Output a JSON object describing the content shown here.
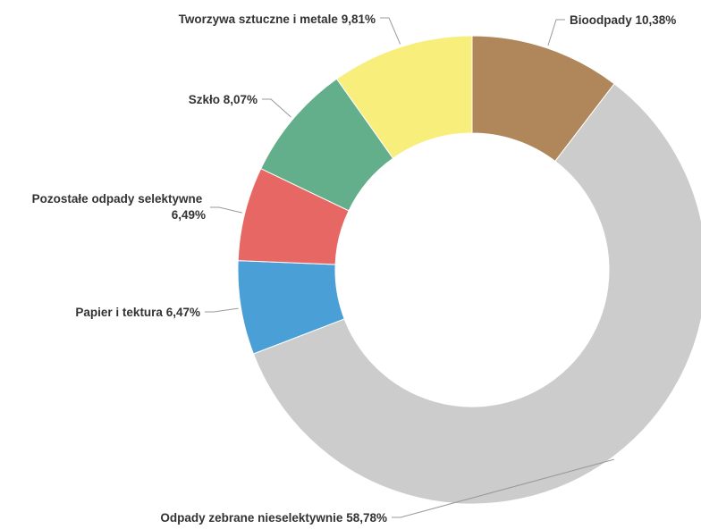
{
  "chart_data": {
    "type": "pie",
    "donut": true,
    "title": "",
    "start_at": "top",
    "direction": "clockwise",
    "slices": [
      {
        "label": "Bioodpady",
        "value": 10.38,
        "value_text": "10,38%",
        "color": "#b0865b"
      },
      {
        "label": "Odpady zebrane nieselektywnie",
        "value": 58.78,
        "value_text": "58,78%",
        "color": "#cccccc"
      },
      {
        "label": "Papier i tektura",
        "value": 6.47,
        "value_text": "6,47%",
        "color": "#4b9fd7"
      },
      {
        "label": "Pozostałe odpady selektywne",
        "value": 6.49,
        "value_text": "6,49%",
        "color": "#e76765"
      },
      {
        "label": "Szkło",
        "value": 8.07,
        "value_text": "8,07%",
        "color": "#63ae8b"
      },
      {
        "label": "Tworzywa sztuczne i metale",
        "value": 9.81,
        "value_text": "9,81%",
        "color": "#f8ee7b"
      }
    ]
  }
}
